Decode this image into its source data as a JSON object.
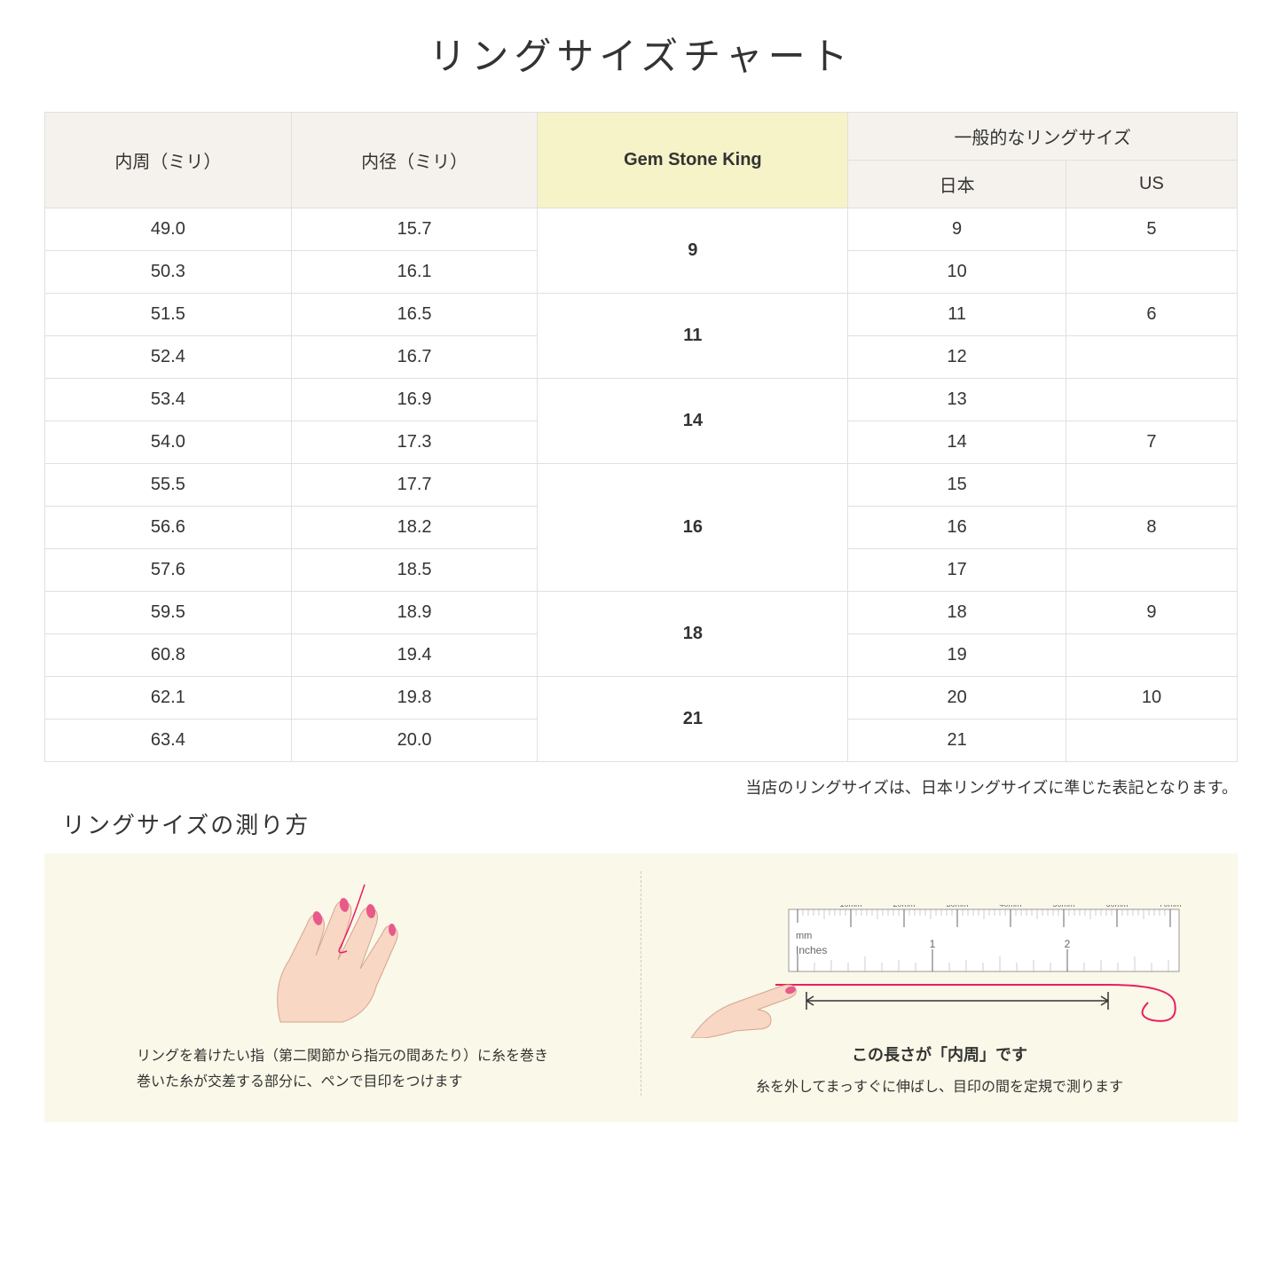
{
  "title": "リングサイズチャート",
  "table": {
    "header_row1": {
      "col1": "内周（ミリ）",
      "col2": "内径（ミリ）",
      "col3": "Gem Stone King",
      "col4_group": "一般的なリングサイズ"
    },
    "header_row2": {
      "col4a": "日本",
      "col4b": "US"
    },
    "rows": [
      {
        "circ": "49.0",
        "dia": "15.7",
        "gsk": "9",
        "gsk_span": 2,
        "jp": "9",
        "us": "5"
      },
      {
        "circ": "50.3",
        "dia": "16.1",
        "gsk": "",
        "gsk_span": 0,
        "jp": "10",
        "us": ""
      },
      {
        "circ": "51.5",
        "dia": "16.5",
        "gsk": "11",
        "gsk_span": 2,
        "jp": "11",
        "us": "6"
      },
      {
        "circ": "52.4",
        "dia": "16.7",
        "gsk": "",
        "gsk_span": 0,
        "jp": "12",
        "us": ""
      },
      {
        "circ": "53.4",
        "dia": "16.9",
        "gsk": "14",
        "gsk_span": 2,
        "jp": "13",
        "us": ""
      },
      {
        "circ": "54.0",
        "dia": "17.3",
        "gsk": "",
        "gsk_span": 0,
        "jp": "14",
        "us": "7"
      },
      {
        "circ": "55.5",
        "dia": "17.7",
        "gsk": "16",
        "gsk_span": 3,
        "jp": "15",
        "us": ""
      },
      {
        "circ": "56.6",
        "dia": "18.2",
        "gsk": "",
        "gsk_span": 0,
        "jp": "16",
        "us": "8"
      },
      {
        "circ": "57.6",
        "dia": "18.5",
        "gsk": "",
        "gsk_span": 0,
        "jp": "17",
        "us": ""
      },
      {
        "circ": "59.5",
        "dia": "18.9",
        "gsk": "18",
        "gsk_span": 2,
        "jp": "18",
        "us": "9"
      },
      {
        "circ": "60.8",
        "dia": "19.4",
        "gsk": "",
        "gsk_span": 0,
        "jp": "19",
        "us": ""
      },
      {
        "circ": "62.1",
        "dia": "19.8",
        "gsk": "21",
        "gsk_span": 2,
        "jp": "20",
        "us": "10"
      },
      {
        "circ": "63.4",
        "dia": "20.0",
        "gsk": "",
        "gsk_span": 0,
        "jp": "21",
        "us": ""
      }
    ],
    "colors": {
      "header_bg": "#f5f2ed",
      "highlight_bg": "#f5f3c7",
      "border": "#e0e0e0"
    }
  },
  "note": "当店のリングサイズは、日本リングサイズに準じた表記となります。",
  "section_title": "リングサイズの測り方",
  "guide": {
    "left_text_line1": "リングを着けたい指（第二関節から指元の間あたり）に糸を巻き",
    "left_text_line2": "巻いた糸が交差する部分に、ペンで目印をつけます",
    "right_measure_label": "この長さが「内周」です",
    "right_text": "糸を外してまっすぐに伸ばし、目印の間を定規で測ります",
    "bg_color": "#faf8e8"
  },
  "ruler": {
    "mm_label": "mm",
    "inches_label": "Inches",
    "mm_ticks": [
      "10mm",
      "20mm",
      "30mm",
      "40mm",
      "50mm",
      "60mm",
      "70mm"
    ],
    "inch_ticks": [
      "1",
      "2"
    ],
    "thread_color": "#e91e63",
    "ruler_border": "#999999",
    "hand_skin": "#f8d7c4",
    "nail_color": "#e85a8a"
  }
}
